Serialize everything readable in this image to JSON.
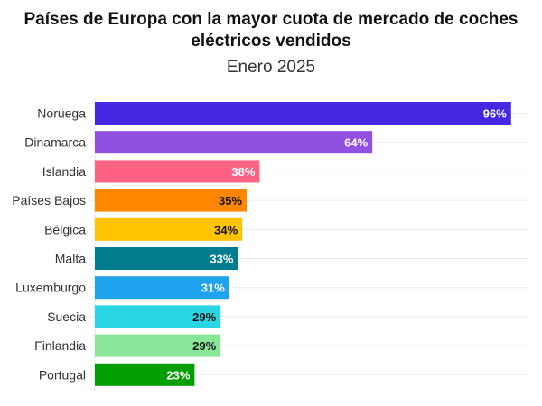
{
  "chart_data": {
    "type": "bar",
    "orientation": "horizontal",
    "title": "Países de Europa con la mayor cuota de mercado de coches eléctricos vendidos",
    "subtitle": "Enero 2025",
    "xlabel": "",
    "ylabel": "",
    "xlim": [
      0,
      100
    ],
    "grid": true,
    "categories": [
      "Noruega",
      "Dinamarca",
      "Islandia",
      "Países Bajos",
      "Bélgica",
      "Malta",
      "Luxemburgo",
      "Suecia",
      "Finlandia",
      "Portugal"
    ],
    "values": [
      96,
      64,
      38,
      35,
      34,
      33,
      31,
      29,
      29,
      23
    ],
    "labels": [
      "96%",
      "64%",
      "38%",
      "35%",
      "34%",
      "33%",
      "31%",
      "29%",
      "29%",
      "23%"
    ],
    "colors": [
      "#4427e0",
      "#9150e0",
      "#ff6283",
      "#ff8700",
      "#ffc300",
      "#007c8f",
      "#1fa3ee",
      "#2ad6e3",
      "#8ae799",
      "#009e00"
    ],
    "label_colors": [
      "#ffffff",
      "#ffffff",
      "#ffffff",
      "#111111",
      "#111111",
      "#ffffff",
      "#ffffff",
      "#111111",
      "#111111",
      "#ffffff"
    ]
  }
}
